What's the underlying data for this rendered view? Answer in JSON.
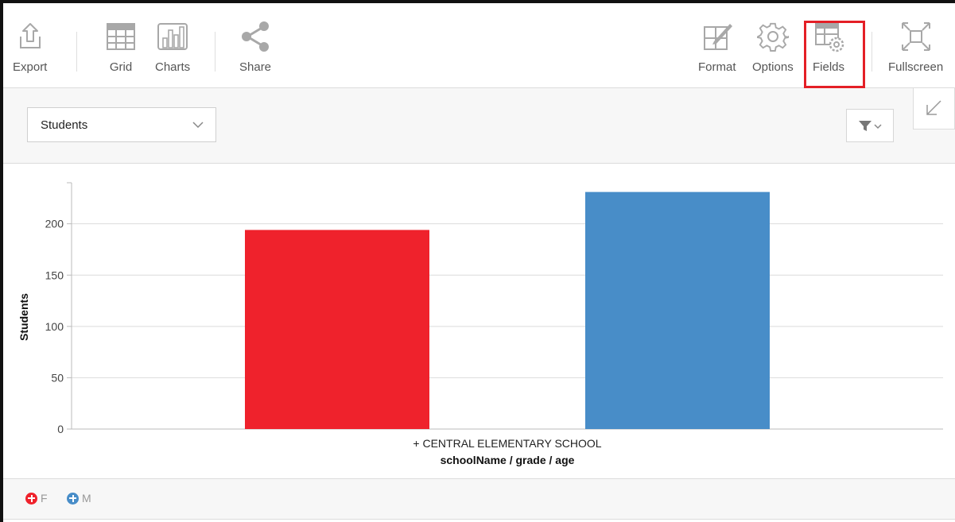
{
  "toolbar": {
    "left": [
      {
        "id": "export",
        "label": "Export",
        "icon": "export-icon"
      },
      {
        "id": "grid",
        "label": "Grid",
        "icon": "grid-icon"
      },
      {
        "id": "charts",
        "label": "Charts",
        "icon": "charts-icon"
      },
      {
        "id": "share",
        "label": "Share",
        "icon": "share-icon"
      }
    ],
    "right": [
      {
        "id": "format",
        "label": "Format",
        "icon": "format-icon"
      },
      {
        "id": "options",
        "label": "Options",
        "icon": "gear-icon"
      },
      {
        "id": "fields",
        "label": "Fields",
        "icon": "fields-icon"
      },
      {
        "id": "fullscreen",
        "label": "Fullscreen",
        "icon": "fullscreen-icon"
      }
    ]
  },
  "measure_select": {
    "value": "Students"
  },
  "colors": {
    "female": "#ef222c",
    "male": "#488dc8",
    "highlight": "#e41f26",
    "icon_gray": "#a8a8a8"
  },
  "chart_data": {
    "type": "bar",
    "categories": [
      "+ CENTRAL ELEMENTARY SCHOOL"
    ],
    "series": [
      {
        "name": "F",
        "values": [
          194
        ],
        "color": "#ef222c"
      },
      {
        "name": "M",
        "values": [
          231
        ],
        "color": "#488dc8"
      }
    ],
    "xlabel": "schoolName / grade / age",
    "ylabel": "Students",
    "ylim": [
      0,
      240
    ],
    "yticks": [
      0,
      50,
      100,
      150,
      200
    ],
    "grid": true,
    "legend": "bottom-left"
  },
  "legend": [
    {
      "label": "F",
      "color": "#ef222c"
    },
    {
      "label": "M",
      "color": "#488dc8"
    }
  ]
}
